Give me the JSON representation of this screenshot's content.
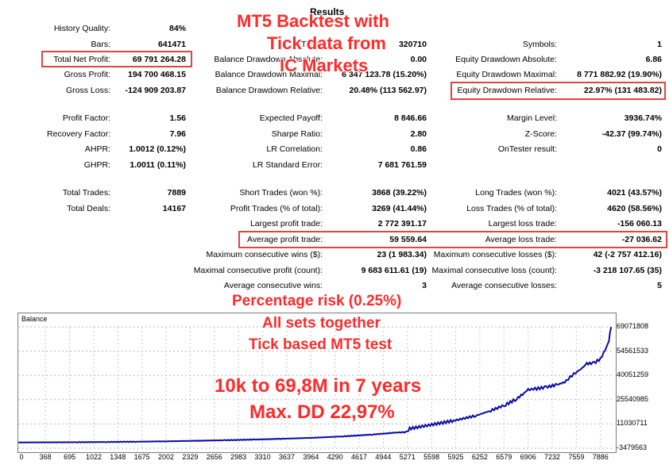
{
  "header": {
    "title": "Results"
  },
  "stats": {
    "col1": [
      {
        "label": "History Quality:",
        "value": "84%"
      },
      {
        "label": "Bars:",
        "value": "641471"
      },
      {
        "label": "Total Net Profit:",
        "value": "69 791 264.28"
      },
      {
        "label": "Gross Profit:",
        "value": "194 700 468.15"
      },
      {
        "label": "Gross Loss:",
        "value": "-124 909 203.87"
      },
      {
        "label": "Profit Factor:",
        "value": "1.56"
      },
      {
        "label": "Recovery Factor:",
        "value": "7.96"
      },
      {
        "label": "AHPR:",
        "value": "1.0012 (0.12%)"
      },
      {
        "label": "GHPR:",
        "value": "1.0011 (0.11%)"
      },
      {
        "label": "Total Trades:",
        "value": "7889"
      },
      {
        "label": "Total Deals:",
        "value": "14167"
      }
    ],
    "col2": [
      {
        "label": "Ticks:",
        "value": "320710"
      },
      {
        "label": "Balance Drawdown Absolute:",
        "value": "0.00"
      },
      {
        "label": "Balance Drawdown Maximal:",
        "value": "6 347 123.78 (15.20%)"
      },
      {
        "label": "Balance Drawdown Relative:",
        "value": "20.48% (113 562.97)"
      },
      {
        "label": "Expected Payoff:",
        "value": "8 846.66"
      },
      {
        "label": "Sharpe Ratio:",
        "value": "2.80"
      },
      {
        "label": "LR Correlation:",
        "value": "0.86"
      },
      {
        "label": "LR Standard Error:",
        "value": "7 681 761.59"
      },
      {
        "label": "Short Trades (won %):",
        "value": "3868 (39.22%)"
      },
      {
        "label": "Profit Trades (% of total):",
        "value": "3269 (41.44%)"
      },
      {
        "label": "Largest profit trade:",
        "value": "2 772 391.17"
      },
      {
        "label": "Average profit trade:",
        "value": "59 559.64"
      },
      {
        "label": "Maximum consecutive wins ($):",
        "value": "23 (1 983.34)"
      },
      {
        "label": "Maximal consecutive profit (count):",
        "value": "9 683 611.61 (19)"
      },
      {
        "label": "Average consecutive wins:",
        "value": "3"
      }
    ],
    "col3": [
      {
        "label": "Symbols:",
        "value": "1"
      },
      {
        "label": "Equity Drawdown Absolute:",
        "value": "6.86"
      },
      {
        "label": "Equity Drawdown Maximal:",
        "value": "8 771 882.92 (19.90%)"
      },
      {
        "label": "Equity Drawdown Relative:",
        "value": "22.97% (131 483.82)"
      },
      {
        "label": "Margin Level:",
        "value": "3936.74%"
      },
      {
        "label": "Z-Score:",
        "value": "-42.37 (99.74%)"
      },
      {
        "label": "OnTester result:",
        "value": "0"
      },
      {
        "label": "Long Trades (won %):",
        "value": "4021 (43.57%)"
      },
      {
        "label": "Loss Trades (% of total):",
        "value": "4620 (58.56%)"
      },
      {
        "label": "Largest loss trade:",
        "value": "-156 060.13"
      },
      {
        "label": "Average loss trade:",
        "value": "-27 036.62"
      },
      {
        "label": "Maximum consecutive losses ($):",
        "value": "42 (-2 757 412.16)"
      },
      {
        "label": "Maximal consecutive loss (count):",
        "value": "-3 218 107.65 (35)"
      },
      {
        "label": "Average consecutive losses:",
        "value": "5"
      }
    ]
  },
  "overlay": {
    "line1": "MT5 Backtest with",
    "line2": "Tick data from",
    "line3": "IC Markets",
    "line4": "Percentage risk (0.25%)",
    "line5": "All sets together",
    "line6": "Tick based MT5 test",
    "line7": "10k to 69,8M in 7 years",
    "line8": "Max. DD 22,97%",
    "color": "#ff2a2a"
  },
  "chart_data": {
    "type": "line",
    "title": "Balance",
    "series_color": "#0a0aa8",
    "x_ticks": [
      "0",
      "368",
      "695",
      "1022",
      "1348",
      "1675",
      "2002",
      "2329",
      "2656",
      "2983",
      "3310",
      "3637",
      "3964",
      "4290",
      "4617",
      "4944",
      "5271",
      "5598",
      "5925",
      "6252",
      "6579",
      "6906",
      "7232",
      "7559",
      "7886"
    ],
    "y_ticks": [
      "69071808",
      "54561533",
      "40051259",
      "25540985",
      "11030711",
      "-3479563"
    ],
    "ylim": [
      -3479563,
      69071808
    ],
    "xlim": [
      0,
      8050
    ],
    "x": [
      0,
      400,
      800,
      1200,
      1600,
      2000,
      2400,
      2800,
      3200,
      3600,
      4000,
      4400,
      4800,
      5100,
      5271,
      5300,
      5600,
      5900,
      6200,
      6400,
      6600,
      6750,
      6850,
      6906,
      7000,
      7150,
      7300,
      7400,
      7450,
      7500,
      7550,
      7600,
      7700,
      7800,
      7886,
      7950,
      8000,
      8030
    ],
    "y": [
      10000,
      50000,
      120000,
      250000,
      420000,
      650000,
      950000,
      1300000,
      1700000,
      2200000,
      2800000,
      3600000,
      4700000,
      5800000,
      6200000,
      8200000,
      10600000,
      13000000,
      16000000,
      19000000,
      22500000,
      26000000,
      29500000,
      31500000,
      32000000,
      33000000,
      34500000,
      36000000,
      38000000,
      40000000,
      41500000,
      43000000,
      47000000,
      47500000,
      50000000,
      55000000,
      61000000,
      69000000
    ]
  }
}
